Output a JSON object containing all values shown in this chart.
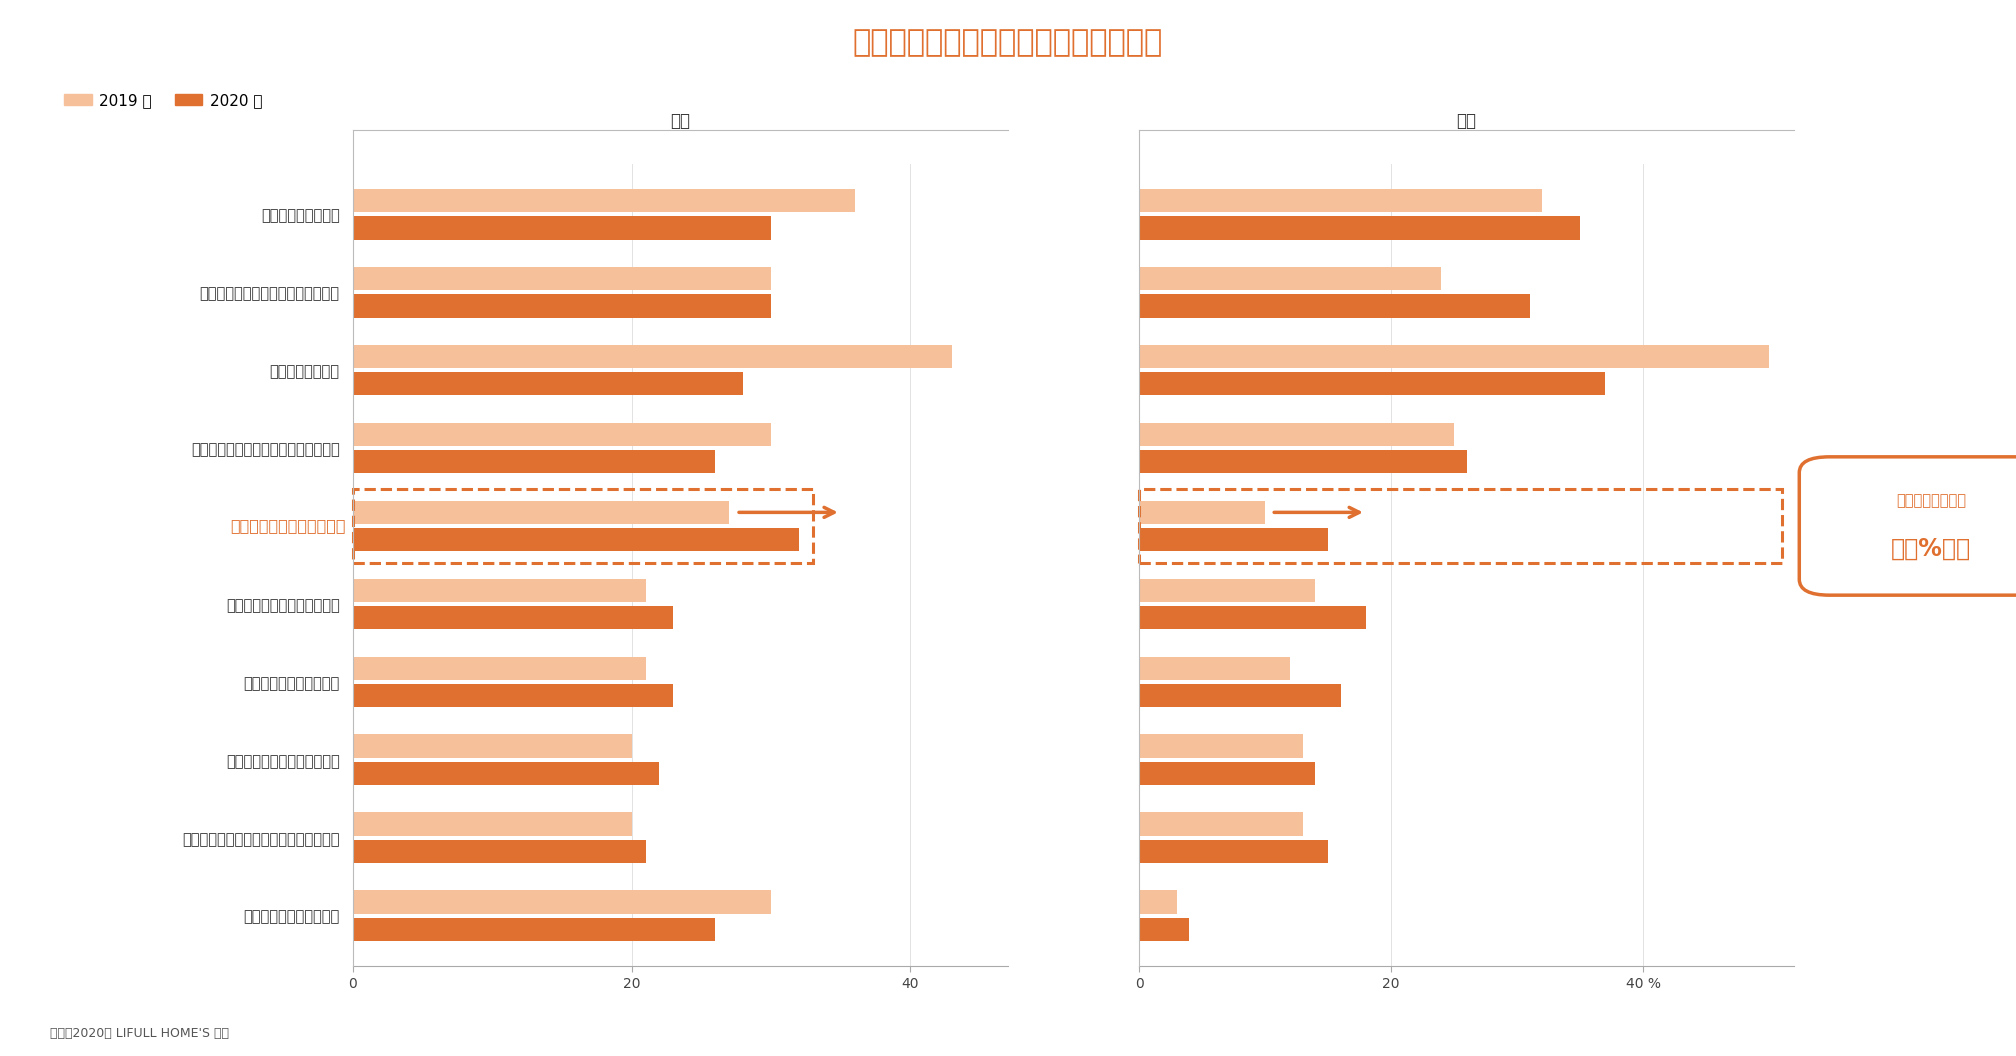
{
  "title": "住み替え・建て替えの際に調べた情報",
  "title_color": "#e07030",
  "subtitle_left": "売買",
  "subtitle_right": "賃貸",
  "source": "出典：2020年 LIFULL HOME'S 調べ",
  "legend_2019": "2019 年",
  "legend_2020": "2020 年",
  "color_2019": "#f5c09a",
  "color_2020": "#e07030",
  "categories": [
    "希望エリアの住環境",
    "自分の所得に対する許容予算の相場",
    "家賃や価格の相場",
    "住まいの仕様・設備の良い点・悪い点",
    "災害に強いエリアかどうか",
    "物件・住宅会社の口コミ情報",
    "注文住宅の基本スペック",
    "賃貸と購入の良い点・悪い点",
    "住まいを借りる・購入する段取り・方法",
    "ローンの借り方・注意点"
  ],
  "baibai_2019": [
    36,
    30,
    43,
    30,
    27,
    21,
    21,
    20,
    20,
    30
  ],
  "baibai_2020": [
    30,
    30,
    28,
    26,
    32,
    23,
    23,
    22,
    21,
    26
  ],
  "chintai_2019": [
    32,
    24,
    50,
    25,
    10,
    14,
    12,
    13,
    13,
    3
  ],
  "chintai_2020": [
    35,
    31,
    37,
    26,
    15,
    18,
    16,
    14,
    15,
    4
  ],
  "highlight_row": 4,
  "annotation_line1": "賃貸・売買ともに",
  "annotation_line2": "約５%増！",
  "background_color": "#ffffff"
}
